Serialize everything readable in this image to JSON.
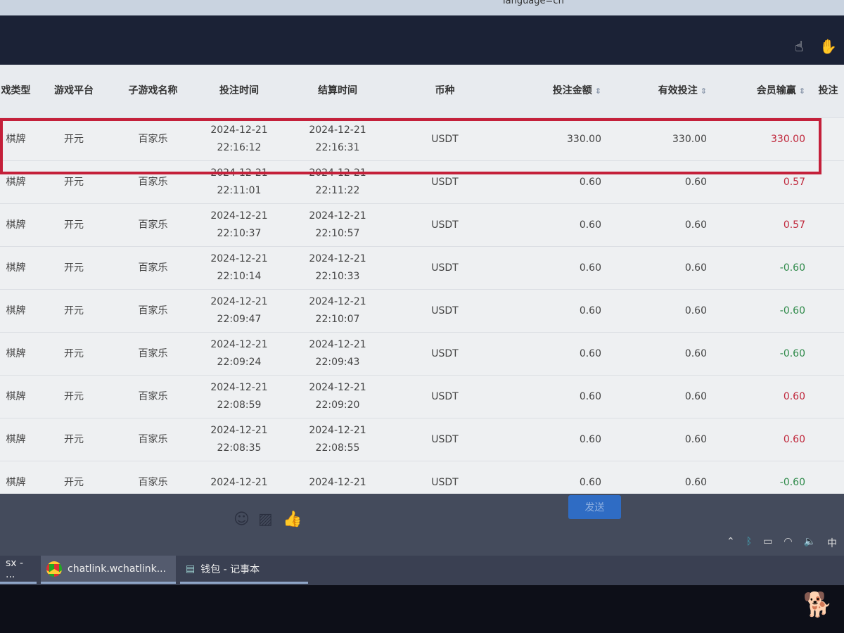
{
  "browser": {
    "url_fragment": "language=cn"
  },
  "nav": {
    "icons": [
      "hand-pointer-icon",
      "hand-icon"
    ]
  },
  "table": {
    "headers": [
      "戏类型",
      "游戏平台",
      "子游戏名称",
      "投注时间",
      "结算时间",
      "币种",
      "投注金额",
      "有效投注",
      "会员输赢",
      "投注"
    ],
    "sortable": [
      "投注金额",
      "有效投注",
      "会员输赢"
    ],
    "rows": [
      {
        "type": "棋牌",
        "platform": "开元",
        "game": "百家乐",
        "bet_date": "2024-12-21",
        "bet_time": "22:16:12",
        "settle_date": "2024-12-21",
        "settle_time": "22:16:31",
        "currency": "USDT",
        "amount": "330.00",
        "valid": "330.00",
        "winloss": "330.00",
        "sign": "pos",
        "highlighted": true
      },
      {
        "type": "棋牌",
        "platform": "开元",
        "game": "百家乐",
        "bet_date": "2024-12-21",
        "bet_time": "22:11:01",
        "settle_date": "2024-12-21",
        "settle_time": "22:11:22",
        "currency": "USDT",
        "amount": "0.60",
        "valid": "0.60",
        "winloss": "0.57",
        "sign": "pos"
      },
      {
        "type": "棋牌",
        "platform": "开元",
        "game": "百家乐",
        "bet_date": "2024-12-21",
        "bet_time": "22:10:37",
        "settle_date": "2024-12-21",
        "settle_time": "22:10:57",
        "currency": "USDT",
        "amount": "0.60",
        "valid": "0.60",
        "winloss": "0.57",
        "sign": "pos"
      },
      {
        "type": "棋牌",
        "platform": "开元",
        "game": "百家乐",
        "bet_date": "2024-12-21",
        "bet_time": "22:10:14",
        "settle_date": "2024-12-21",
        "settle_time": "22:10:33",
        "currency": "USDT",
        "amount": "0.60",
        "valid": "0.60",
        "winloss": "-0.60",
        "sign": "neg"
      },
      {
        "type": "棋牌",
        "platform": "开元",
        "game": "百家乐",
        "bet_date": "2024-12-21",
        "bet_time": "22:09:47",
        "settle_date": "2024-12-21",
        "settle_time": "22:10:07",
        "currency": "USDT",
        "amount": "0.60",
        "valid": "0.60",
        "winloss": "-0.60",
        "sign": "neg"
      },
      {
        "type": "棋牌",
        "platform": "开元",
        "game": "百家乐",
        "bet_date": "2024-12-21",
        "bet_time": "22:09:24",
        "settle_date": "2024-12-21",
        "settle_time": "22:09:43",
        "currency": "USDT",
        "amount": "0.60",
        "valid": "0.60",
        "winloss": "-0.60",
        "sign": "neg"
      },
      {
        "type": "棋牌",
        "platform": "开元",
        "game": "百家乐",
        "bet_date": "2024-12-21",
        "bet_time": "22:08:59",
        "settle_date": "2024-12-21",
        "settle_time": "22:09:20",
        "currency": "USDT",
        "amount": "0.60",
        "valid": "0.60",
        "winloss": "0.60",
        "sign": "pos"
      },
      {
        "type": "棋牌",
        "platform": "开元",
        "game": "百家乐",
        "bet_date": "2024-12-21",
        "bet_time": "22:08:35",
        "settle_date": "2024-12-21",
        "settle_time": "22:08:55",
        "currency": "USDT",
        "amount": "0.60",
        "valid": "0.60",
        "winloss": "0.60",
        "sign": "pos"
      },
      {
        "type": "棋牌",
        "platform": "开元",
        "game": "百家乐",
        "bet_date": "2024-12-21",
        "bet_time": "",
        "settle_date": "2024-12-21",
        "settle_time": "",
        "currency": "USDT",
        "amount": "0.60",
        "valid": "0.60",
        "winloss": "-0.60",
        "sign": "neg"
      }
    ]
  },
  "chat": {
    "send_label": "发送",
    "tools": [
      "emoji-icon",
      "image-icon",
      "thumbs-up-icon"
    ]
  },
  "taskbar": {
    "items": [
      "sx - ...",
      "chatlink.wchatlink...",
      "钱包 - 记事本"
    ],
    "ime": "中"
  },
  "colors": {
    "highlight": "#c4203a",
    "positive": "#c0283c",
    "negative": "#2f8a4a",
    "send": "#2f6cc4"
  }
}
